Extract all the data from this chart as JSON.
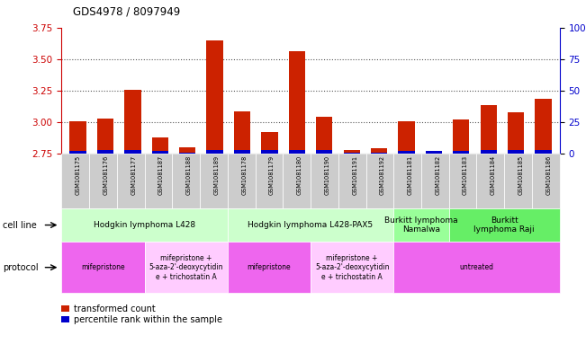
{
  "title": "GDS4978 / 8097949",
  "samples": [
    "GSM1081175",
    "GSM1081176",
    "GSM1081177",
    "GSM1081187",
    "GSM1081188",
    "GSM1081189",
    "GSM1081178",
    "GSM1081179",
    "GSM1081180",
    "GSM1081190",
    "GSM1081191",
    "GSM1081192",
    "GSM1081181",
    "GSM1081182",
    "GSM1081183",
    "GSM1081184",
    "GSM1081185",
    "GSM1081186"
  ],
  "transformed_count": [
    3.01,
    3.03,
    3.26,
    2.88,
    2.8,
    3.65,
    3.09,
    2.92,
    3.57,
    3.04,
    2.78,
    2.79,
    3.01,
    2.76,
    3.02,
    3.14,
    3.08,
    3.19
  ],
  "percentile_rank": [
    2,
    3,
    3,
    2,
    1,
    3,
    3,
    3,
    3,
    3,
    1,
    1,
    2,
    2,
    2,
    3,
    3,
    3
  ],
  "bar_base": 2.75,
  "ylim_left": [
    2.75,
    3.75
  ],
  "ylim_right": [
    0,
    100
  ],
  "yticks_left": [
    2.75,
    3.0,
    3.25,
    3.5,
    3.75
  ],
  "yticks_right": [
    0,
    25,
    50,
    75,
    100
  ],
  "dotted_lines": [
    3.0,
    3.25,
    3.5
  ],
  "cell_line_groups": [
    {
      "label": "Hodgkin lymphoma L428",
      "start": 0,
      "end": 5,
      "color": "#ccffcc"
    },
    {
      "label": "Hodgkin lymphoma L428-PAX5",
      "start": 6,
      "end": 11,
      "color": "#ccffcc"
    },
    {
      "label": "Burkitt lymphoma\nNamalwa",
      "start": 12,
      "end": 13,
      "color": "#99ff99"
    },
    {
      "label": "Burkitt\nlymphoma Raji",
      "start": 14,
      "end": 17,
      "color": "#66ee66"
    }
  ],
  "protocol_groups": [
    {
      "label": "mifepristone",
      "start": 0,
      "end": 2,
      "color": "#ee66ee"
    },
    {
      "label": "mifepristone +\n5-aza-2'-deoxycytidin\ne + trichostatin A",
      "start": 3,
      "end": 5,
      "color": "#ffccff"
    },
    {
      "label": "mifepristone",
      "start": 6,
      "end": 8,
      "color": "#ee66ee"
    },
    {
      "label": "mifepristone +\n5-aza-2'-deoxycytidin\ne + trichostatin A",
      "start": 9,
      "end": 11,
      "color": "#ffccff"
    },
    {
      "label": "untreated",
      "start": 12,
      "end": 17,
      "color": "#ee66ee"
    }
  ],
  "bar_color_red": "#cc2200",
  "bar_color_blue": "#0000cc",
  "axis_left_color": "#cc0000",
  "axis_right_color": "#0000cc",
  "bg_color": "#ffffff",
  "grid_color": "#555555",
  "tick_bg_color": "#cccccc"
}
